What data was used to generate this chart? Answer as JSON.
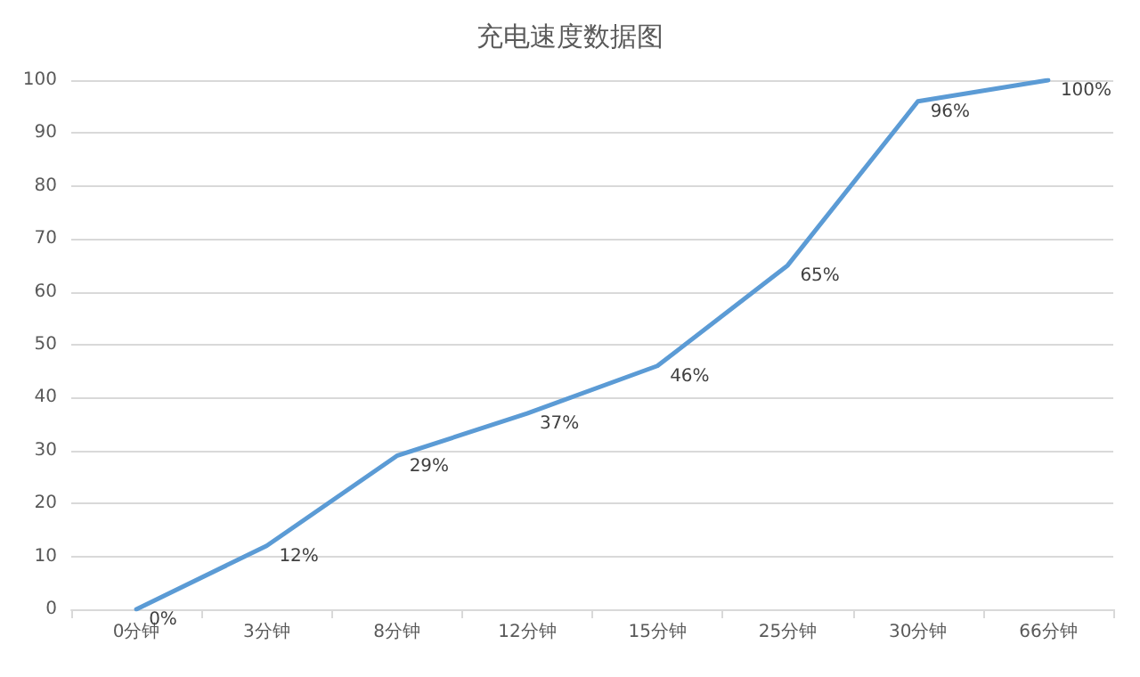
{
  "chart_data": {
    "type": "line",
    "title": "充电速度数据图",
    "categories": [
      "0分钟",
      "3分钟",
      "8分钟",
      "12分钟",
      "15分钟",
      "25分钟",
      "30分钟",
      "66分钟"
    ],
    "series": [
      {
        "color": "#5b9bd5",
        "values": [
          0,
          12,
          29,
          37,
          46,
          65,
          96,
          100
        ],
        "value_labels": [
          "0%",
          "12%",
          "29%",
          "37%",
          "46%",
          "65%",
          "96%",
          "100%"
        ]
      }
    ],
    "ylim": [
      0,
      100
    ],
    "yticks": [
      0,
      10,
      20,
      30,
      40,
      50,
      60,
      70,
      80,
      90,
      100
    ],
    "grid": "y",
    "marker": "none",
    "line_style": "solid"
  }
}
